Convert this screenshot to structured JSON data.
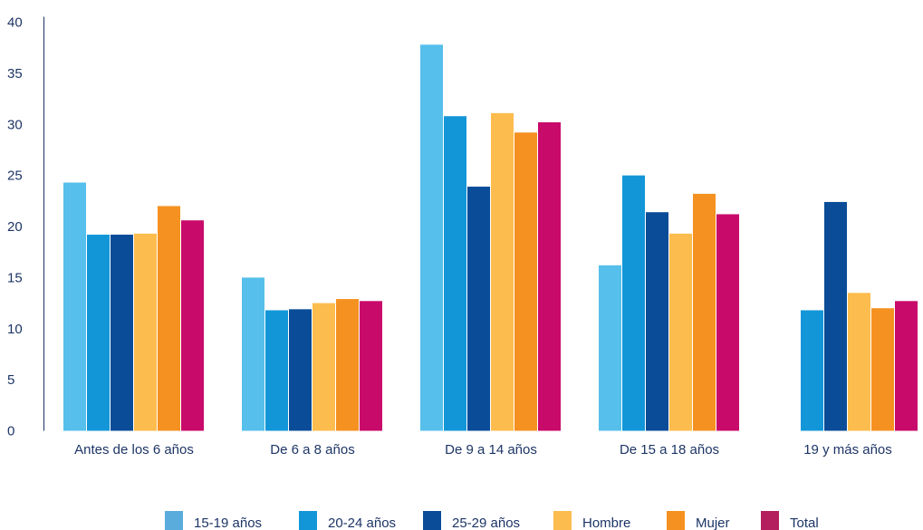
{
  "chart_data": {
    "type": "bar",
    "title": "",
    "xlabel": "",
    "ylabel": "",
    "ylim": [
      0,
      40
    ],
    "yticks": [
      0,
      5,
      10,
      15,
      20,
      25,
      30,
      35,
      40
    ],
    "grid": false,
    "legend_position": "bottom",
    "categories": [
      "Antes de los 6 años",
      "De 6 a 8 años",
      "De 9 a 14 años",
      "De 15 a 18 años",
      "19 y más años"
    ],
    "series": [
      {
        "name": "15-19 años",
        "color": "#56bfeb",
        "values": [
          24.3,
          15.0,
          37.8,
          16.2,
          null
        ]
      },
      {
        "name": "20-24 años",
        "color": "#1396d8",
        "values": [
          19.2,
          11.8,
          30.8,
          25.0,
          11.8
        ]
      },
      {
        "name": "25-29 años",
        "color": "#0a4c97",
        "values": [
          19.2,
          11.9,
          23.9,
          21.4,
          22.4
        ]
      },
      {
        "name": "Hombre",
        "color": "#fcbc4e",
        "values": [
          19.3,
          12.5,
          31.1,
          19.3,
          13.5
        ]
      },
      {
        "name": "Mujer",
        "color": "#f59120",
        "values": [
          22.0,
          12.9,
          29.2,
          23.2,
          12.0
        ]
      },
      {
        "name": "Total",
        "color": "#c80a6a",
        "values": [
          20.6,
          12.7,
          30.2,
          21.2,
          12.7
        ]
      }
    ],
    "legend_swatch_colors": [
      "#5aacdc",
      "#1396d8",
      "#0a4c97",
      "#fcbc4e",
      "#f59120",
      "#b41e5f"
    ]
  }
}
